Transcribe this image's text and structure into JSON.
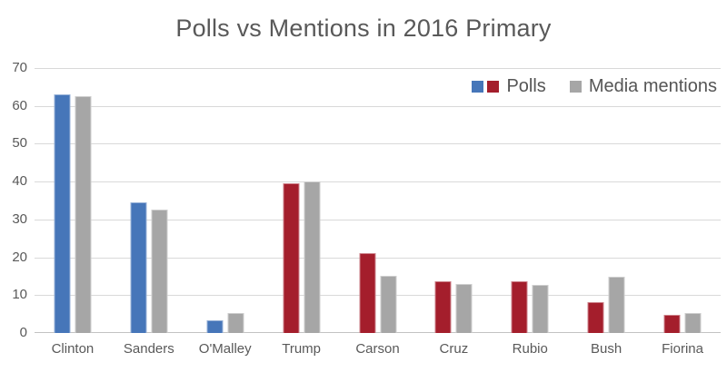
{
  "chart_data": {
    "type": "bar",
    "title": "Polls vs Mentions in 2016 Primary",
    "categories": [
      "Clinton",
      "Sanders",
      "O'Malley",
      "Trump",
      "Carson",
      "Cruz",
      "Rubio",
      "Bush",
      "Fiorina"
    ],
    "parties": [
      "D",
      "D",
      "D",
      "R",
      "R",
      "R",
      "R",
      "R",
      "R"
    ],
    "series": [
      {
        "name": "Polls",
        "values": [
          63,
          34.5,
          3.3,
          39.5,
          21,
          13.6,
          13.6,
          8.2,
          4.8
        ]
      },
      {
        "name": "Media mentions",
        "values": [
          62.5,
          32.5,
          5.2,
          40,
          15.2,
          13,
          12.8,
          14.8,
          5.2
        ]
      }
    ],
    "ylim": [
      0,
      70
    ],
    "yticks": [
      0,
      10,
      20,
      30,
      40,
      50,
      60,
      70
    ],
    "grid": true,
    "legend_position": "top-right",
    "xlabel": "",
    "ylabel": ""
  },
  "legend": [
    {
      "label": "Polls"
    },
    {
      "label": "Media mentions"
    }
  ],
  "colors": {
    "polls_dem": "#4676b9",
    "polls_rep": "#a41e2c",
    "media_mentions": "#a6a6a6",
    "gridline": "#d9d9d9",
    "axis_line": "#c3c3c3",
    "text": "#595959"
  }
}
